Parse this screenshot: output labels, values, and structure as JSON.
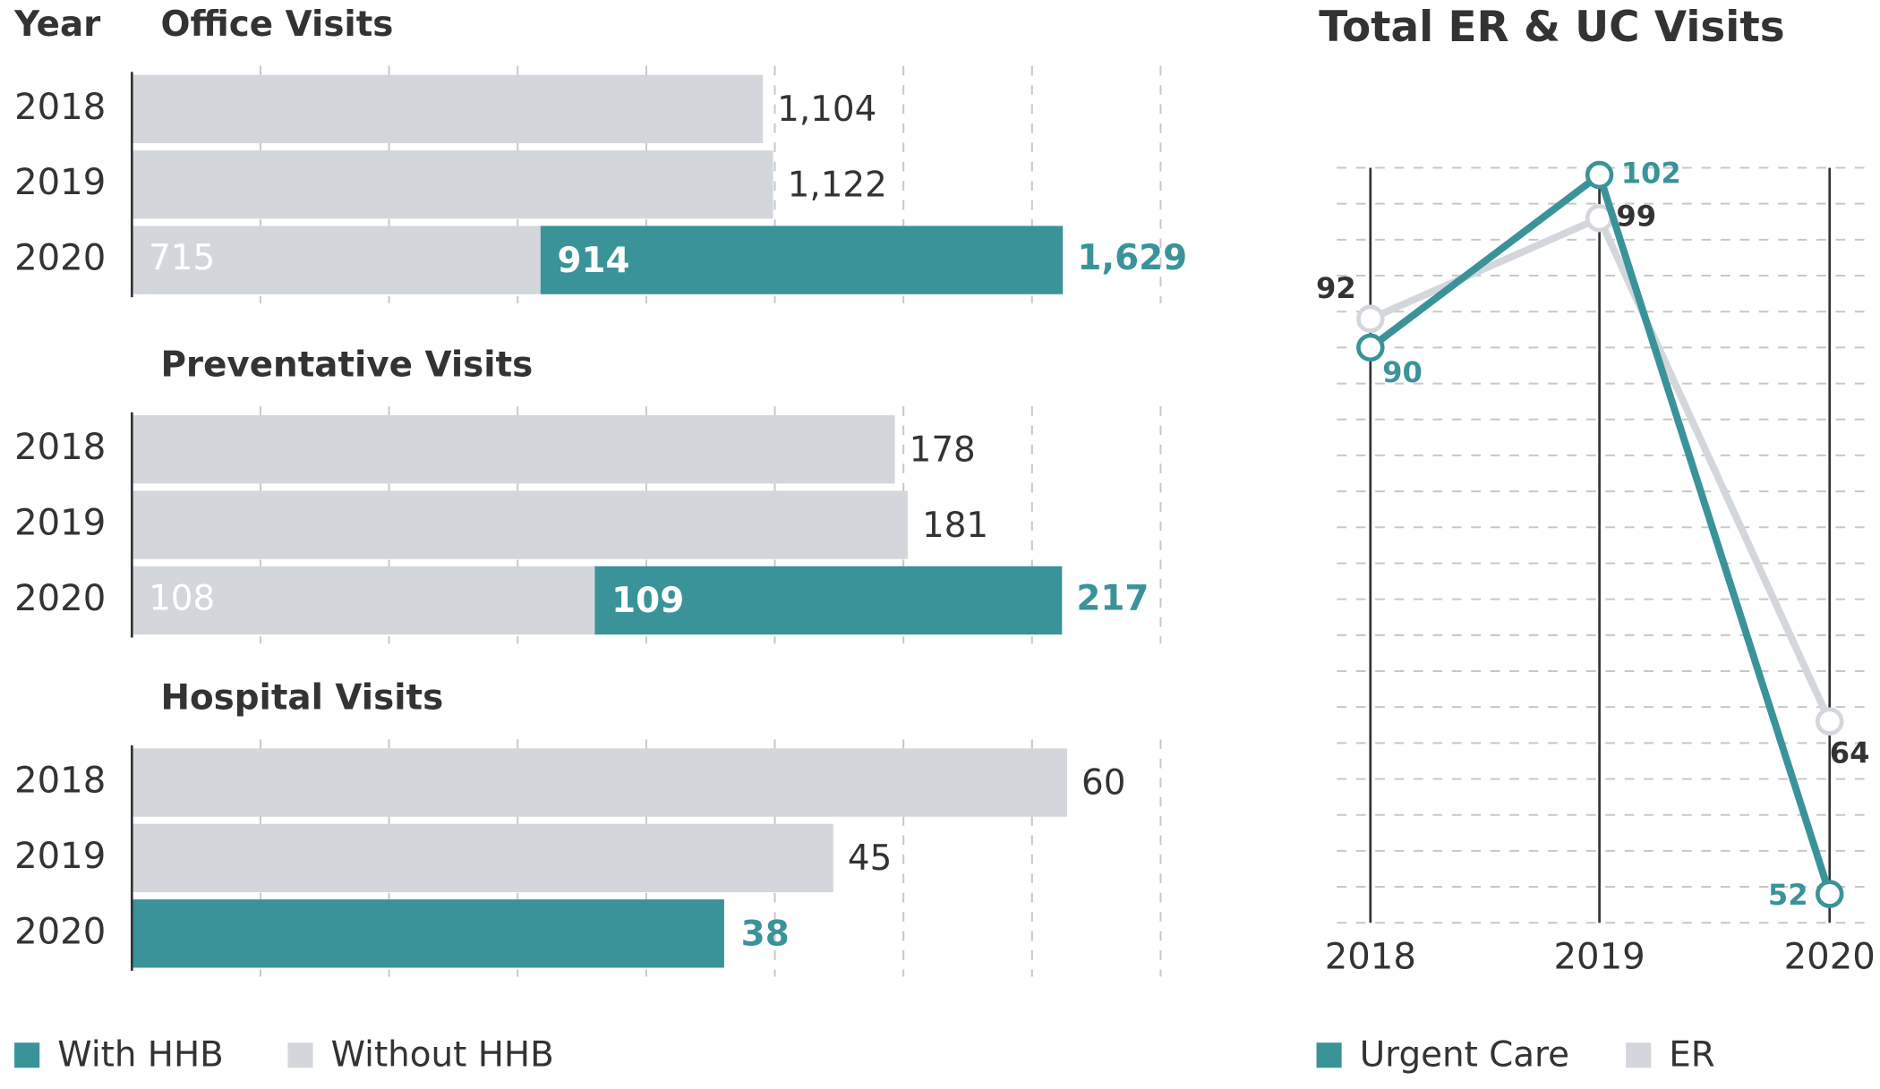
{
  "chart_data": [
    {
      "type": "stacked-hbar",
      "y_label": "Year",
      "title": "Office Visits",
      "categories": [
        "2018",
        "2019",
        "2020"
      ],
      "series": [
        {
          "name": "With HHB",
          "color": "#3a9399",
          "values": [
            null,
            null,
            914
          ],
          "value_labels": [
            null,
            null,
            "914"
          ]
        },
        {
          "name": "Without HHB",
          "color": "#d3d7db",
          "values": [
            1104,
            1122,
            715
          ],
          "value_labels": [
            "1,104",
            "1,122",
            "715"
          ]
        }
      ],
      "totals": [
        null,
        null,
        1629
      ],
      "total_labels": [
        null,
        null,
        "1,629"
      ],
      "xlim": [
        0,
        1800
      ],
      "xticks": [
        0,
        225,
        450,
        675,
        900,
        1125,
        1350,
        1575,
        1800
      ],
      "grid": true
    },
    {
      "type": "stacked-hbar",
      "title": "Preventative Visits",
      "categories": [
        "2018",
        "2019",
        "2020"
      ],
      "series": [
        {
          "name": "With HHB",
          "color": "#3a9399",
          "values": [
            null,
            null,
            109
          ]
        },
        {
          "name": "Without HHB",
          "color": "#d3d7db",
          "values": [
            178,
            181,
            108
          ]
        }
      ],
      "totals": [
        null,
        null,
        217
      ],
      "xlim": [
        0,
        240
      ],
      "xticks": [
        0,
        30,
        60,
        90,
        120,
        150,
        180,
        210,
        240
      ],
      "grid": true
    },
    {
      "type": "stacked-hbar",
      "title": "Hospital Visits",
      "categories": [
        "2018",
        "2019",
        "2020"
      ],
      "series": [
        {
          "name": "With HHB",
          "color": "#3a9399",
          "values": [
            null,
            null,
            38
          ]
        },
        {
          "name": "Without HHB",
          "color": "#d3d7db",
          "values": [
            60,
            45,
            null
          ]
        }
      ],
      "xlim": [
        0,
        66
      ],
      "xticks": [
        0,
        8.25,
        16.5,
        24.75,
        33,
        41.25,
        49.5,
        57.75,
        66
      ],
      "grid": true
    },
    {
      "type": "line",
      "title": "Total ER & UC Visits",
      "categories": [
        "2018",
        "2019",
        "2020"
      ],
      "series": [
        {
          "name": "Urgent Care",
          "color": "#3a9399",
          "values": [
            90,
            102,
            52
          ]
        },
        {
          "name": "ER",
          "color": "#d3d7db",
          "values": [
            92,
            99,
            64
          ]
        }
      ],
      "ylim": [
        50,
        102.5
      ],
      "yticks": [
        50,
        52.5,
        55,
        57.5,
        60,
        62.5,
        65,
        67.5,
        70,
        72.5,
        75,
        77.5,
        80,
        82.5,
        85,
        87.5,
        90,
        92.5,
        95,
        97.5,
        100,
        102.5
      ],
      "grid": true
    }
  ]
}
